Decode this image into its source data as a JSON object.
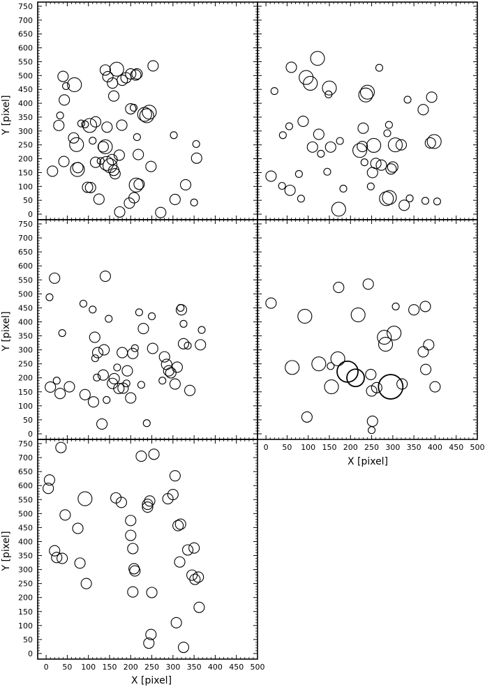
{
  "figure": {
    "xlabel": "X [pixel]",
    "ylabel": "Y [pixel]",
    "x_ticks": [
      0,
      50,
      100,
      150,
      200,
      250,
      300,
      350,
      400,
      450,
      500
    ],
    "y_ticks": [
      0,
      50,
      100,
      150,
      200,
      250,
      300,
      350,
      400,
      450,
      500,
      550,
      600,
      650,
      700,
      750
    ]
  },
  "chart_data": [
    {
      "type": "scatter",
      "title": "",
      "xlabel": "",
      "ylabel": "Y [pixel]",
      "xlim": [
        -20,
        500
      ],
      "ylim": [
        -20,
        765
      ],
      "grid": false,
      "points": [
        [
          15,
          155,
          3
        ],
        [
          30,
          320,
          3
        ],
        [
          33,
          356,
          2
        ],
        [
          42,
          190,
          3
        ],
        [
          43,
          412,
          3
        ],
        [
          47,
          462,
          2
        ],
        [
          40,
          497,
          3
        ],
        [
          67,
          467,
          4
        ],
        [
          65,
          275,
          3
        ],
        [
          72,
          251,
          4
        ],
        [
          74,
          161,
          4
        ],
        [
          75,
          168,
          3
        ],
        [
          83,
          327,
          2
        ],
        [
          92,
          324,
          2
        ],
        [
          103,
          320,
          4
        ],
        [
          98,
          97,
          3
        ],
        [
          105,
          96,
          3
        ],
        [
          117,
          333,
          3
        ],
        [
          117,
          187,
          3
        ],
        [
          125,
          54,
          3
        ],
        [
          129,
          192,
          2
        ],
        [
          135,
          243,
          3
        ],
        [
          140,
          243,
          4
        ],
        [
          144,
          314,
          3
        ],
        [
          140,
          520,
          3
        ],
        [
          146,
          496,
          3
        ],
        [
          143,
          183,
          4
        ],
        [
          151,
          175,
          4
        ],
        [
          156,
          197,
          3
        ],
        [
          157,
          473,
          3
        ],
        [
          160,
          426,
          3
        ],
        [
          160,
          158,
          3
        ],
        [
          163,
          146,
          3
        ],
        [
          167,
          523,
          4
        ],
        [
          173,
          213,
          3
        ],
        [
          174,
          8,
          3
        ],
        [
          179,
          321,
          3
        ],
        [
          180,
          483,
          3
        ],
        [
          189,
          492,
          3
        ],
        [
          197,
          40,
          3
        ],
        [
          200,
          380,
          3
        ],
        [
          200,
          506,
          3
        ],
        [
          207,
          384,
          2
        ],
        [
          212,
          502,
          3
        ],
        [
          215,
          278,
          2
        ],
        [
          215,
          506,
          3
        ],
        [
          218,
          215,
          3
        ],
        [
          220,
          108,
          3
        ],
        [
          213,
          105,
          4
        ],
        [
          208,
          59,
          3
        ],
        [
          233,
          360,
          4
        ],
        [
          238,
          355,
          4
        ],
        [
          244,
          368,
          4
        ],
        [
          248,
          172,
          3
        ],
        [
          253,
          535,
          3
        ],
        [
          271,
          6,
          3
        ],
        [
          305,
          53,
          3
        ],
        [
          330,
          106,
          3
        ],
        [
          350,
          42,
          2
        ],
        [
          355,
          253,
          2
        ],
        [
          356,
          202,
          3
        ],
        [
          302,
          285,
          2
        ],
        [
          110,
          265,
          2
        ]
      ]
    },
    {
      "type": "scatter",
      "title": "",
      "xlabel": "",
      "ylabel": "",
      "xlim": [
        -20,
        500
      ],
      "ylim": [
        -20,
        765
      ],
      "grid": false,
      "points": [
        [
          12,
          137,
          3
        ],
        [
          20,
          444,
          2
        ],
        [
          40,
          285,
          2
        ],
        [
          38,
          102,
          2
        ],
        [
          55,
          317,
          2
        ],
        [
          57,
          86,
          3
        ],
        [
          60,
          530,
          3
        ],
        [
          78,
          145,
          2
        ],
        [
          83,
          56,
          2
        ],
        [
          88,
          335,
          3
        ],
        [
          95,
          493,
          4
        ],
        [
          105,
          472,
          4
        ],
        [
          110,
          242,
          3
        ],
        [
          122,
          562,
          4
        ],
        [
          125,
          288,
          3
        ],
        [
          130,
          218,
          2
        ],
        [
          145,
          153,
          2
        ],
        [
          148,
          432,
          2
        ],
        [
          150,
          455,
          4
        ],
        [
          153,
          242,
          3
        ],
        [
          172,
          18,
          4
        ],
        [
          175,
          264,
          2
        ],
        [
          183,
          92,
          2
        ],
        [
          222,
          230,
          4
        ],
        [
          228,
          244,
          3
        ],
        [
          230,
          310,
          3
        ],
        [
          233,
          187,
          2
        ],
        [
          240,
          440,
          4
        ],
        [
          236,
          430,
          4
        ],
        [
          248,
          100,
          2
        ],
        [
          252,
          150,
          3
        ],
        [
          255,
          248,
          4
        ],
        [
          260,
          183,
          3
        ],
        [
          268,
          528,
          2
        ],
        [
          273,
          177,
          3
        ],
        [
          285,
          56,
          4
        ],
        [
          287,
          292,
          2
        ],
        [
          291,
          322,
          2
        ],
        [
          292,
          60,
          4
        ],
        [
          296,
          163,
          3
        ],
        [
          300,
          170,
          3
        ],
        [
          306,
          250,
          4
        ],
        [
          320,
          250,
          3
        ],
        [
          327,
          32,
          3
        ],
        [
          335,
          413,
          2
        ],
        [
          340,
          57,
          2
        ],
        [
          372,
          377,
          3
        ],
        [
          377,
          48,
          2
        ],
        [
          389,
          257,
          3
        ],
        [
          392,
          422,
          3
        ],
        [
          398,
          262,
          4
        ],
        [
          405,
          46,
          2
        ]
      ]
    },
    {
      "type": "scatter",
      "title": "",
      "xlabel": "",
      "ylabel": "Y [pixel]",
      "xlim": [
        -20,
        500
      ],
      "ylim": [
        -20,
        765
      ],
      "grid": false,
      "points": [
        [
          8,
          488,
          2
        ],
        [
          10,
          167,
          3
        ],
        [
          20,
          556,
          3
        ],
        [
          25,
          190,
          2
        ],
        [
          33,
          144,
          3
        ],
        [
          38,
          360,
          2
        ],
        [
          55,
          168,
          3
        ],
        [
          88,
          465,
          2
        ],
        [
          92,
          140,
          3
        ],
        [
          110,
          444,
          2
        ],
        [
          112,
          114,
          3
        ],
        [
          115,
          345,
          3
        ],
        [
          116,
          270,
          2
        ],
        [
          120,
          201,
          2
        ],
        [
          122,
          290,
          3
        ],
        [
          132,
          35,
          3
        ],
        [
          135,
          210,
          3
        ],
        [
          137,
          300,
          3
        ],
        [
          140,
          563,
          3
        ],
        [
          143,
          121,
          2
        ],
        [
          148,
          411,
          2
        ],
        [
          157,
          180,
          3
        ],
        [
          161,
          197,
          3
        ],
        [
          168,
          237,
          2
        ],
        [
          172,
          162,
          3
        ],
        [
          180,
          290,
          3
        ],
        [
          182,
          163,
          3
        ],
        [
          190,
          180,
          2
        ],
        [
          192,
          225,
          3
        ],
        [
          200,
          128,
          3
        ],
        [
          205,
          287,
          3
        ],
        [
          210,
          306,
          2
        ],
        [
          220,
          434,
          2
        ],
        [
          225,
          175,
          2
        ],
        [
          230,
          376,
          3
        ],
        [
          238,
          38,
          2
        ],
        [
          250,
          420,
          2
        ],
        [
          252,
          305,
          3
        ],
        [
          275,
          190,
          2
        ],
        [
          280,
          275,
          3
        ],
        [
          285,
          248,
          3
        ],
        [
          290,
          225,
          3
        ],
        [
          295,
          218,
          3
        ],
        [
          305,
          178,
          3
        ],
        [
          310,
          238,
          3
        ],
        [
          318,
          450,
          2
        ],
        [
          320,
          443,
          3
        ],
        [
          325,
          322,
          3
        ],
        [
          325,
          393,
          2
        ],
        [
          335,
          315,
          2
        ],
        [
          340,
          155,
          3
        ],
        [
          368,
          371,
          2
        ],
        [
          365,
          318,
          3
        ]
      ]
    },
    {
      "type": "scatter",
      "title": "",
      "xlabel": "X [pixel]",
      "ylabel": "",
      "xlim": [
        -20,
        500
      ],
      "ylim": [
        -20,
        765
      ],
      "grid": false,
      "points": [
        [
          12,
          467,
          3
        ],
        [
          62,
          237,
          4
        ],
        [
          92,
          420,
          4
        ],
        [
          97,
          60,
          3
        ],
        [
          125,
          250,
          4
        ],
        [
          153,
          242,
          2
        ],
        [
          155,
          168,
          4
        ],
        [
          170,
          268,
          4
        ],
        [
          172,
          523,
          3
        ],
        [
          193,
          222,
          6
        ],
        [
          212,
          200,
          5
        ],
        [
          218,
          425,
          4
        ],
        [
          242,
          535,
          3
        ],
        [
          248,
          212,
          3
        ],
        [
          250,
          153,
          3
        ],
        [
          252,
          45,
          3
        ],
        [
          250,
          13,
          2
        ],
        [
          262,
          165,
          3
        ],
        [
          280,
          345,
          4
        ],
        [
          283,
          320,
          4
        ],
        [
          295,
          168,
          7
        ],
        [
          303,
          360,
          4
        ],
        [
          307,
          455,
          2
        ],
        [
          322,
          178,
          3
        ],
        [
          350,
          443,
          3
        ],
        [
          372,
          293,
          3
        ],
        [
          377,
          455,
          3
        ],
        [
          378,
          230,
          3
        ],
        [
          385,
          318,
          3
        ],
        [
          400,
          168,
          3
        ]
      ]
    },
    {
      "type": "scatter",
      "title": "",
      "xlabel": "X [pixel]",
      "ylabel": "Y [pixel]",
      "xlim": [
        -20,
        500
      ],
      "ylim": [
        -20,
        765
      ],
      "grid": false,
      "points": [
        [
          8,
          620,
          3
        ],
        [
          5,
          590,
          3
        ],
        [
          20,
          367,
          3
        ],
        [
          25,
          343,
          3
        ],
        [
          35,
          736,
          3
        ],
        [
          38,
          340,
          3
        ],
        [
          45,
          495,
          3
        ],
        [
          75,
          447,
          3
        ],
        [
          80,
          323,
          3
        ],
        [
          92,
          553,
          4
        ],
        [
          95,
          250,
          3
        ],
        [
          165,
          556,
          3
        ],
        [
          178,
          540,
          3
        ],
        [
          200,
          475,
          3
        ],
        [
          200,
          422,
          3
        ],
        [
          205,
          375,
          3
        ],
        [
          208,
          303,
          3
        ],
        [
          210,
          295,
          3
        ],
        [
          205,
          220,
          3
        ],
        [
          225,
          705,
          3
        ],
        [
          240,
          533,
          3
        ],
        [
          240,
          523,
          3
        ],
        [
          245,
          545,
          3
        ],
        [
          243,
          37,
          3
        ],
        [
          248,
          68,
          3
        ],
        [
          250,
          218,
          3
        ],
        [
          255,
          712,
          3
        ],
        [
          288,
          553,
          3
        ],
        [
          300,
          568,
          3
        ],
        [
          305,
          635,
          3
        ],
        [
          308,
          110,
          3
        ],
        [
          312,
          457,
          3
        ],
        [
          318,
          462,
          3
        ],
        [
          316,
          327,
          3
        ],
        [
          325,
          22,
          3
        ],
        [
          335,
          370,
          3
        ],
        [
          345,
          280,
          3
        ],
        [
          350,
          377,
          3
        ],
        [
          352,
          265,
          3
        ],
        [
          360,
          273,
          3
        ],
        [
          362,
          165,
          3
        ]
      ]
    }
  ]
}
